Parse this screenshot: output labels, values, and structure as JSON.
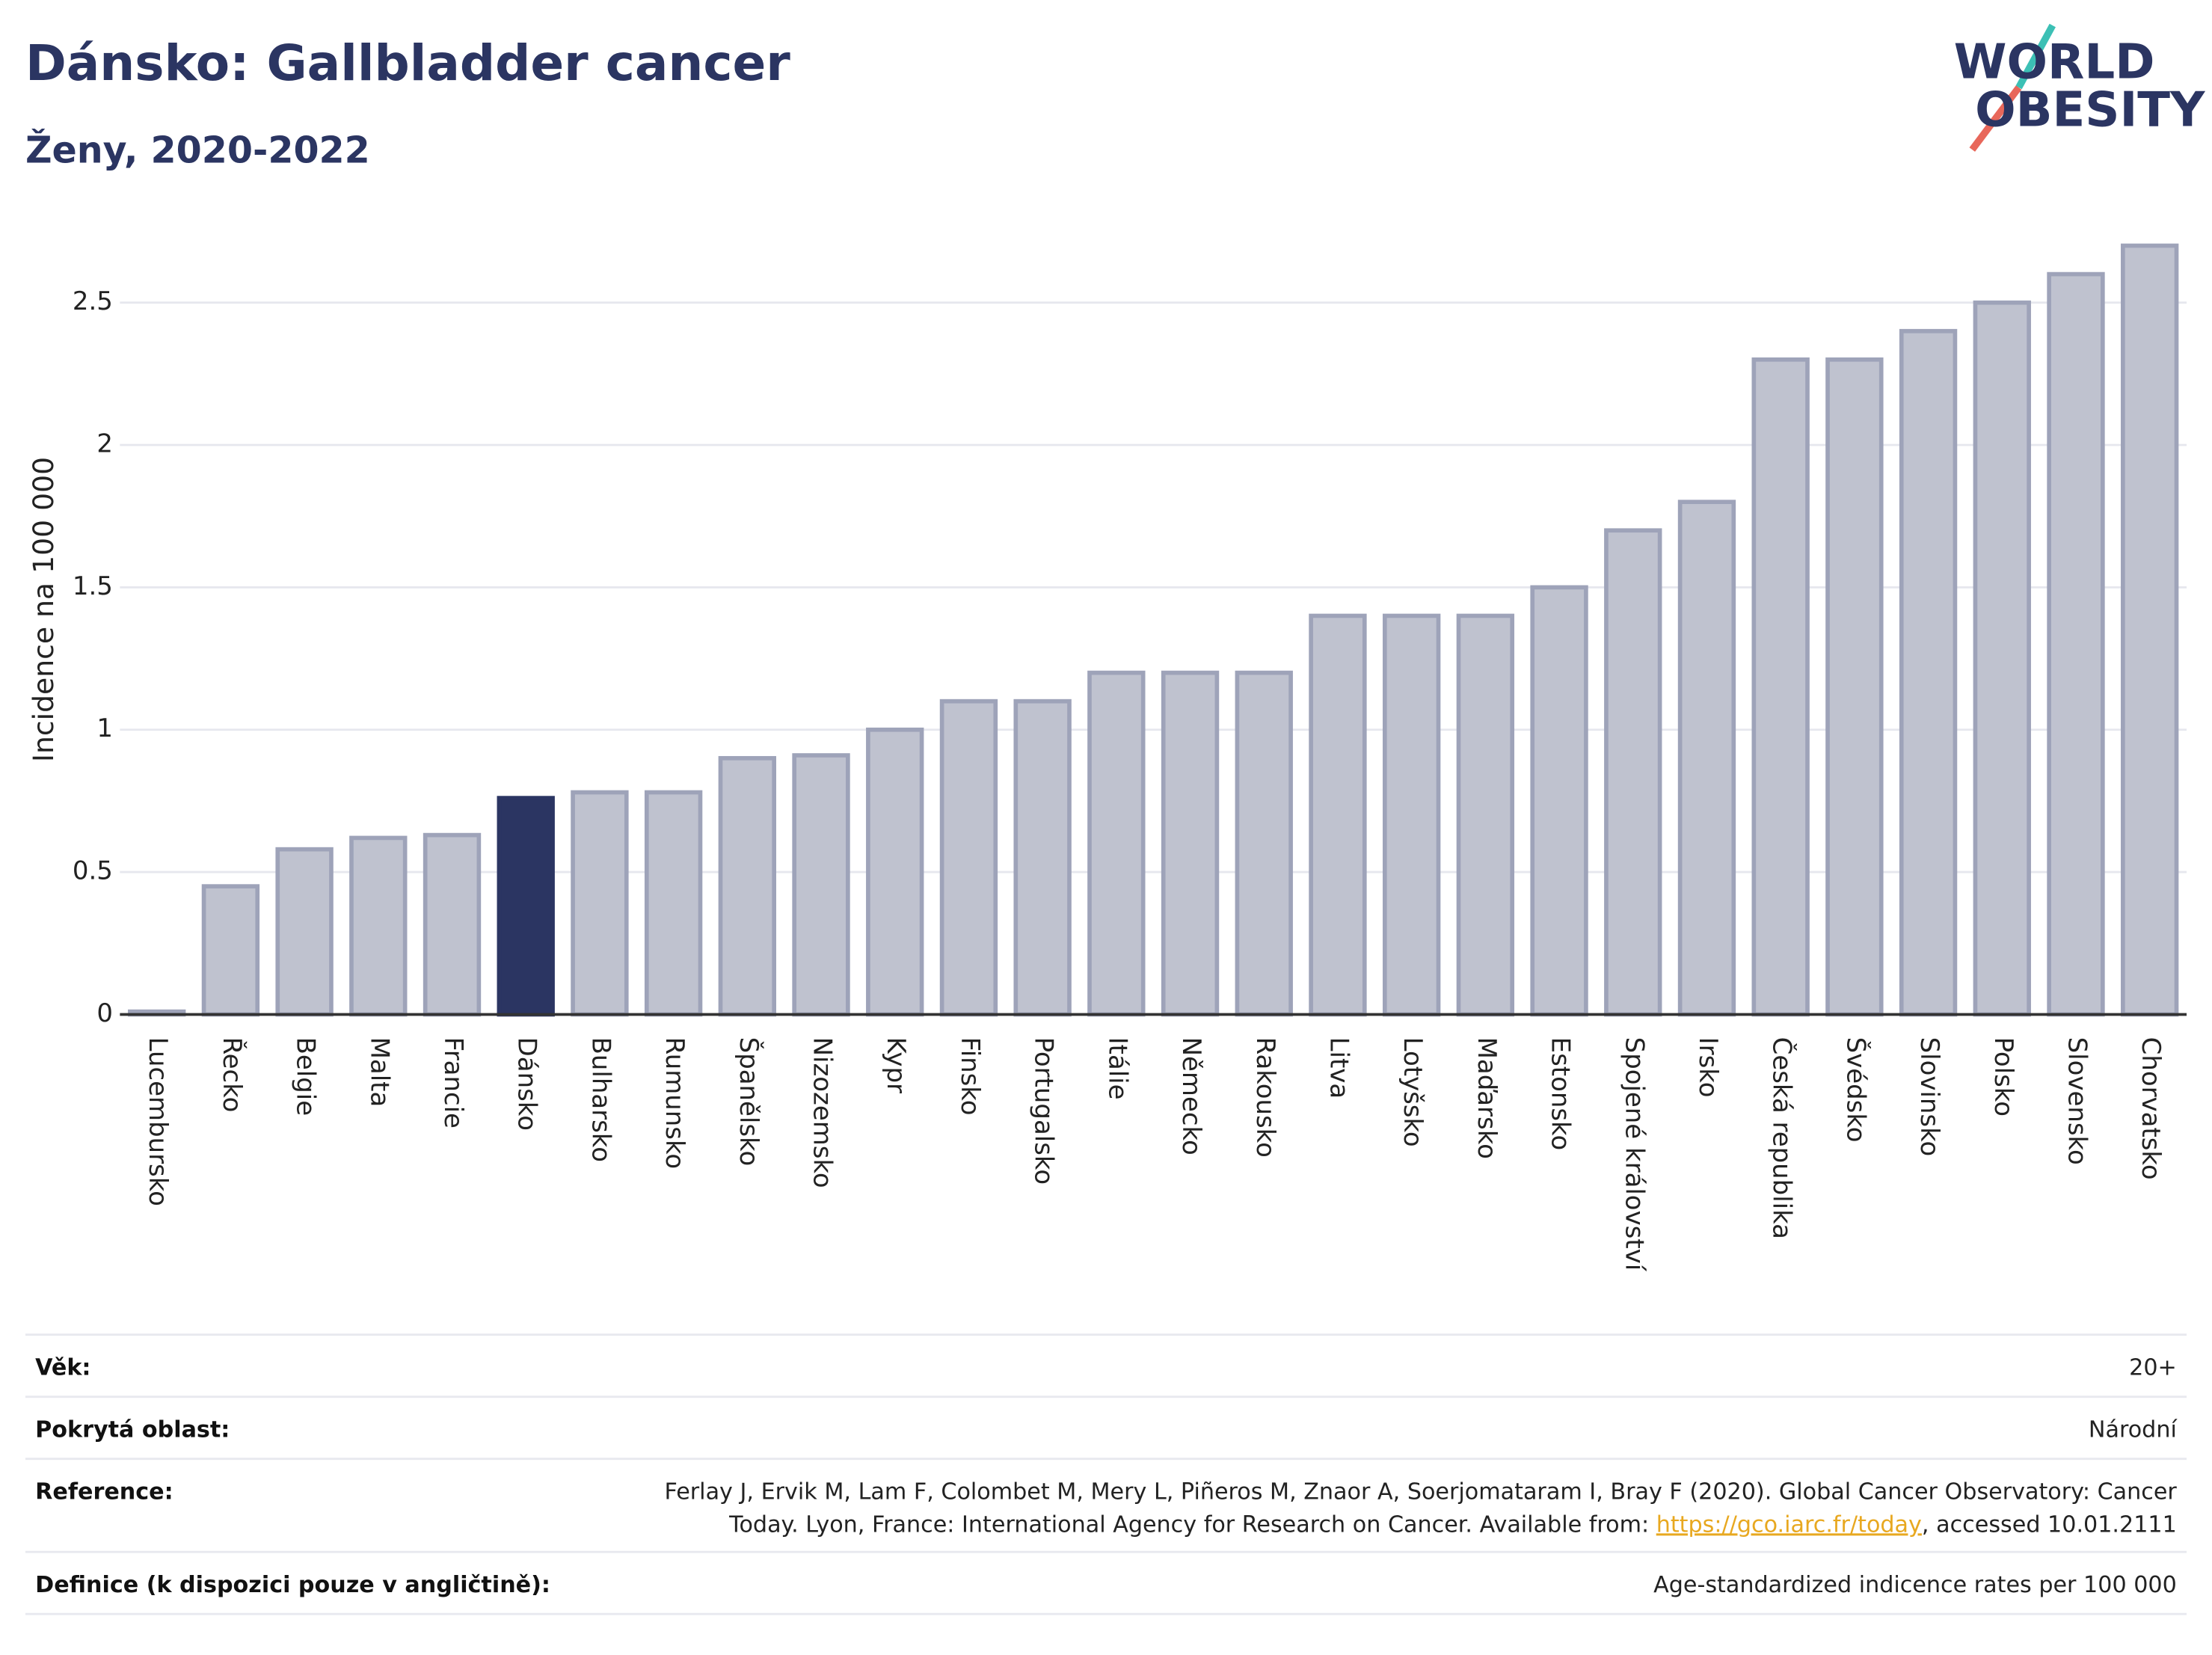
{
  "chart_data": {
    "type": "bar",
    "title": "Dánsko: Gallbladder cancer",
    "subtitle": "Ženy, 2020-2022",
    "y_label": "Incidence na 100 000",
    "categories": [
      "Lucembursko",
      "Řecko",
      "Belgie",
      "Malta",
      "Francie",
      "Dánsko",
      "Bulharsko",
      "Rumunsko",
      "Španělsko",
      "Nizozemsko",
      "Kypr",
      "Finsko",
      "Portugalsko",
      "Itálie",
      "Německo",
      "Rakousko",
      "Litva",
      "Lotyšsko",
      "Maďarsko",
      "Estonsko",
      "Spojené království",
      "Irsko",
      "Česká republika",
      "Švédsko",
      "Slovinsko",
      "Polsko",
      "Slovensko",
      "Chorvatsko"
    ],
    "values": [
      0.01,
      0.45,
      0.58,
      0.62,
      0.63,
      0.76,
      0.78,
      0.78,
      0.9,
      0.91,
      1.0,
      1.1,
      1.1,
      1.2,
      1.2,
      1.2,
      1.4,
      1.4,
      1.4,
      1.5,
      1.7,
      1.8,
      2.3,
      2.3,
      2.4,
      2.5,
      2.6,
      2.7
    ],
    "colors": [
      "#bfc2cf",
      "#bfc2cf",
      "#bfc2cf",
      "#bfc2cf",
      "#bfc2cf",
      "#2b3562",
      "#bfc2cf",
      "#bfc2cf",
      "#bfc2cf",
      "#bfc2cf",
      "#bfc2cf",
      "#bfc2cf",
      "#bfc2cf",
      "#bfc2cf",
      "#bfc2cf",
      "#bfc2cf",
      "#bfc2cf",
      "#bfc2cf",
      "#bfc2cf",
      "#bfc2cf",
      "#bfc2cf",
      "#bfc2cf",
      "#bfc2cf",
      "#bfc2cf",
      "#bfc2cf",
      "#bfc2cf",
      "#bfc2cf",
      "#bfc2cf"
    ],
    "ylim": [
      0,
      2.75
    ],
    "yticks": [
      0,
      0.5,
      1,
      1.5,
      2,
      2.5
    ],
    "grid": true
  },
  "logo": {
    "line1": "WORLD",
    "line2": "OBESITY"
  },
  "footer": {
    "rows": [
      {
        "label": "Věk:",
        "value": "20+"
      },
      {
        "label": "Pokrytá oblast:",
        "value": "Národní"
      },
      {
        "label": "Reference:",
        "value_line1": "Ferlay J, Ervik M, Lam F, Colombet M, Mery L, Piñeros M, Znaor A, Soerjomataram I, Bray F (2020). Global Cancer Observatory: Cancer",
        "value_line2": "Today. Lyon, France: International Agency for Research on Cancer. Available from: ",
        "link": "https://gco.iarc.fr/today",
        "value_end": ", accessed 10.01.2111"
      },
      {
        "label": "Definice (k dispozici pouze v angličtině):",
        "value": "Age-standardized indicence rates per 100 000"
      }
    ]
  }
}
